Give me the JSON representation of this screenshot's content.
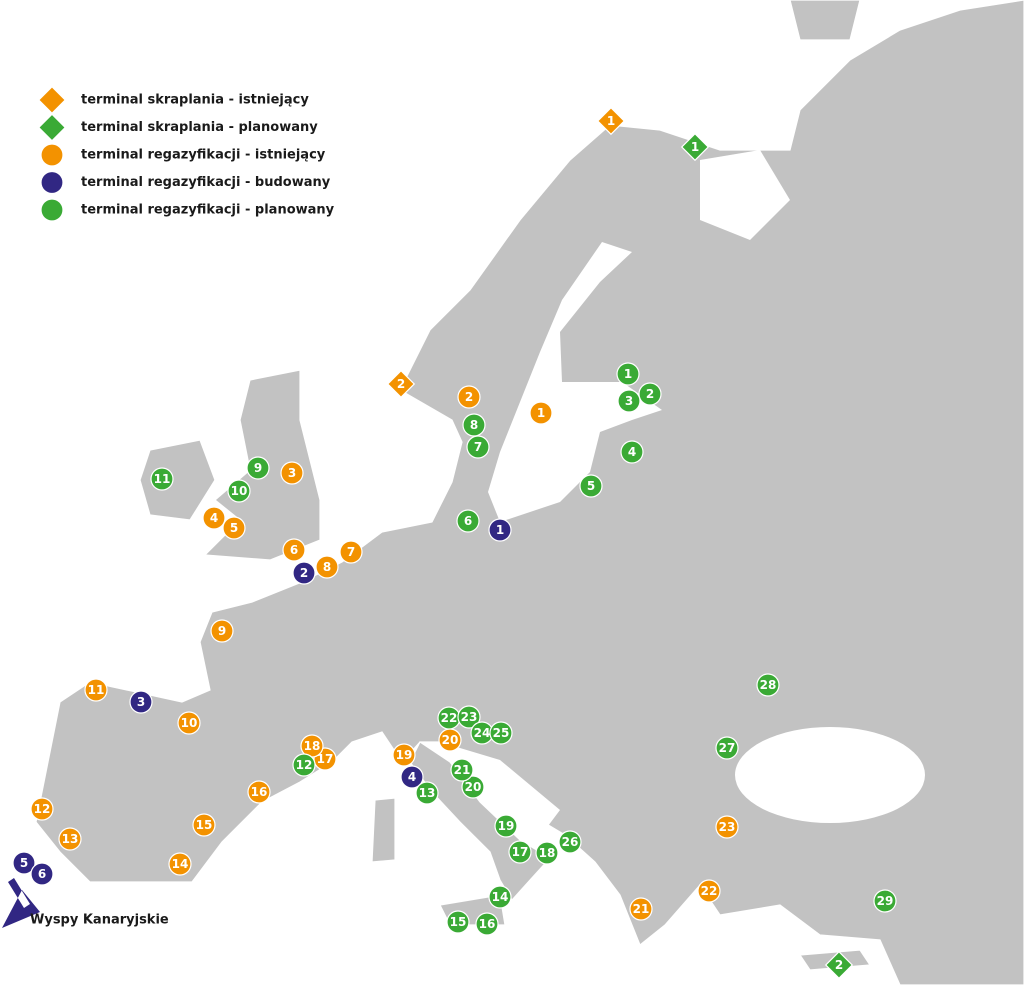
{
  "legend": [
    {
      "label": "terminal skraplania - istniejący",
      "symbol": "diamond",
      "color": "#f39200",
      "markers": [
        "1",
        "2"
      ]
    },
    {
      "label": "terminal skraplania - planowany",
      "symbol": "diamond",
      "color": "#3aaa35",
      "markers": [
        "1",
        "2"
      ]
    },
    {
      "label": "terminal regazyfikacji - istniejący",
      "symbol": "circle",
      "color": "#f39200",
      "markers": [
        "1",
        "2",
        "3",
        "4",
        "5",
        "6",
        "7",
        "8",
        "9",
        "10",
        "11",
        "12",
        "13",
        "14",
        "15",
        "16",
        "17",
        "18",
        "19",
        "20",
        "21",
        "22",
        "23"
      ]
    },
    {
      "label": "terminal regazyfikacji - budowany",
      "symbol": "circle",
      "color": "#312783",
      "markers": [
        "1",
        "2",
        "3",
        "4",
        "5",
        "6"
      ]
    },
    {
      "label": "terminal regazyfikacji - planowany",
      "symbol": "circle",
      "color": "#3aaa35",
      "markers": [
        "1",
        "2",
        "3",
        "4",
        "5",
        "6",
        "7",
        "8",
        "9",
        "10",
        "11",
        "12",
        "13",
        "14",
        "15",
        "16",
        "17",
        "18",
        "19",
        "20",
        "21",
        "22",
        "23",
        "24",
        "25",
        "26",
        "27",
        "28",
        "29"
      ]
    }
  ],
  "annotation": "Wyspy Kanaryjskie"
}
